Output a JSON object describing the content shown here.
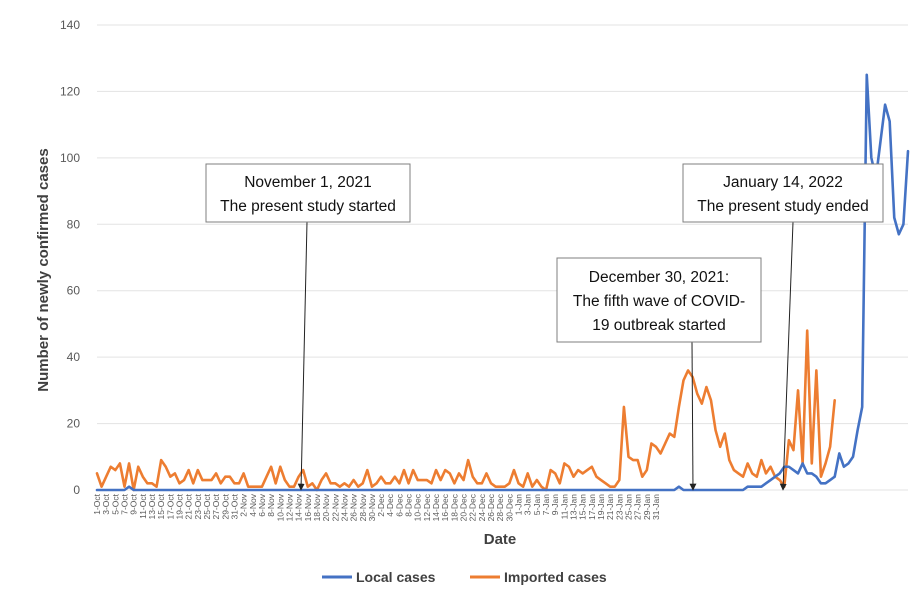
{
  "chart_data": {
    "type": "line",
    "title": "",
    "xlabel": "Date",
    "ylabel": "Number of newly confirmed cases",
    "ylim": [
      0,
      140
    ],
    "yticks": [
      0,
      20,
      40,
      60,
      80,
      100,
      120,
      140
    ],
    "grid": "horizontal",
    "legend_position": "bottom",
    "x_tick_labels": [
      "1-Oct",
      "3-Oct",
      "5-Oct",
      "7-Oct",
      "9-Oct",
      "11-Oct",
      "13-Oct",
      "15-Oct",
      "17-Oct",
      "19-Oct",
      "21-Oct",
      "23-Oct",
      "25-Oct",
      "27-Oct",
      "29-Oct",
      "31-Oct",
      "2-Nov",
      "4-Nov",
      "6-Nov",
      "8-Nov",
      "10-Nov",
      "12-Nov",
      "14-Nov",
      "16-Nov",
      "18-Nov",
      "20-Nov",
      "22-Nov",
      "24-Nov",
      "26-Nov",
      "28-Nov",
      "30-Nov",
      "2-Dec",
      "4-Dec",
      "6-Dec",
      "8-Dec",
      "10-Dec",
      "12-Dec",
      "14-Dec",
      "16-Dec",
      "18-Dec",
      "20-Dec",
      "22-Dec",
      "24-Dec",
      "26-Dec",
      "28-Dec",
      "30-Dec",
      "1-Jan",
      "3-Jan",
      "5-Jan",
      "7-Jan",
      "9-Jan",
      "11-Jan",
      "13-Jan",
      "15-Jan",
      "17-Jan",
      "19-Jan",
      "21-Jan",
      "23-Jan",
      "25-Jan",
      "27-Jan",
      "29-Jan",
      "31-Jan"
    ],
    "series": [
      {
        "name": "Local cases",
        "color": "#4472C4",
        "values": [
          0,
          0,
          0,
          0,
          0,
          0,
          0,
          1,
          0,
          0,
          0,
          0,
          0,
          0,
          0,
          0,
          0,
          0,
          0,
          0,
          0,
          0,
          0,
          0,
          0,
          0,
          0,
          0,
          0,
          0,
          0,
          0,
          0,
          0,
          0,
          0,
          0,
          0,
          0,
          0,
          0,
          0,
          0,
          0,
          0,
          0,
          0,
          0,
          0,
          0,
          0,
          0,
          0,
          0,
          0,
          0,
          0,
          0,
          0,
          0,
          0,
          0,
          0,
          0,
          0,
          0,
          0,
          0,
          0,
          0,
          0,
          0,
          0,
          0,
          0,
          0,
          0,
          0,
          0,
          0,
          0,
          0,
          0,
          0,
          0,
          0,
          0,
          0,
          0,
          0,
          0,
          0,
          0,
          0,
          0,
          0,
          0,
          0,
          0,
          0,
          0,
          0,
          0,
          0,
          0,
          0,
          0,
          0,
          0,
          0,
          0,
          0,
          0,
          0,
          0,
          0,
          0,
          0,
          0,
          0,
          0,
          0,
          0,
          0,
          0,
          0,
          0,
          1,
          0,
          0,
          0,
          0,
          0,
          0,
          0,
          0,
          0,
          0,
          0,
          0,
          0,
          0,
          1,
          1,
          1,
          1,
          2,
          3,
          4,
          5,
          7,
          7,
          6,
          5,
          8,
          5,
          5,
          4,
          2,
          2,
          3,
          4,
          11,
          7,
          8,
          10,
          18,
          25,
          125,
          100,
          94,
          105,
          116,
          111,
          82,
          77,
          80,
          102
        ]
      },
      {
        "name": "Imported cases",
        "color": "#ED7D31",
        "values": [
          5,
          1,
          4,
          7,
          6,
          8,
          1,
          8,
          0,
          7,
          4,
          2,
          2,
          1,
          9,
          7,
          4,
          5,
          2,
          3,
          6,
          2,
          6,
          3,
          3,
          3,
          5,
          2,
          4,
          4,
          2,
          2,
          5,
          1,
          1,
          1,
          1,
          4,
          7,
          2,
          7,
          3,
          1,
          1,
          4,
          6,
          1,
          2,
          0,
          3,
          5,
          2,
          2,
          1,
          2,
          1,
          3,
          1,
          2,
          6,
          1,
          2,
          4,
          2,
          2,
          4,
          2,
          6,
          2,
          6,
          3,
          3,
          3,
          2,
          6,
          3,
          6,
          5,
          2,
          5,
          3,
          9,
          4,
          2,
          2,
          5,
          2,
          1,
          1,
          1,
          2,
          6,
          2,
          1,
          5,
          1,
          3,
          1,
          0,
          6,
          5,
          2,
          8,
          7,
          4,
          6,
          5,
          6,
          7,
          4,
          3,
          2,
          1,
          1,
          3,
          25,
          10,
          9,
          9,
          4,
          6,
          14,
          13,
          11,
          14,
          17,
          16,
          25,
          33,
          36,
          34,
          29,
          26,
          31,
          27,
          18,
          13,
          17,
          9,
          6,
          5,
          4,
          8,
          5,
          4,
          9,
          5,
          7,
          4,
          3,
          1,
          15,
          12,
          30,
          8,
          48,
          8,
          36,
          4,
          8,
          13,
          27
        ]
      }
    ],
    "annotations": [
      {
        "id": "start",
        "lines": [
          "November 1, 2021",
          "The present study started"
        ]
      },
      {
        "id": "wave",
        "lines": [
          "December 30, 2021:",
          "The fifth wave of COVID-",
          "19 outbreak started"
        ]
      },
      {
        "id": "end",
        "lines": [
          "January 14, 2022",
          "The present study ended"
        ]
      }
    ]
  }
}
